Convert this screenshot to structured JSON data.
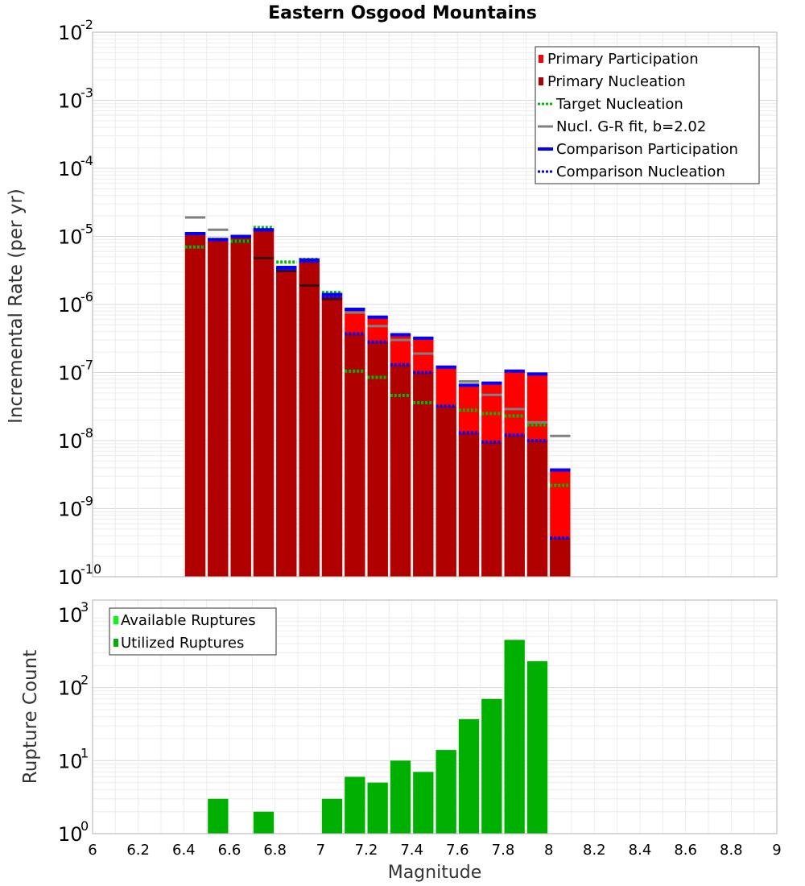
{
  "title": "Eastern Osgood Mountains",
  "chart_data": [
    {
      "type": "bar",
      "panel": "top",
      "xlabel": "",
      "ylabel": "Incremental Rate (per yr)",
      "yscale": "log",
      "xlim": [
        6,
        9
      ],
      "ylim": [
        1e-10,
        0.01
      ],
      "yticks": [
        {
          "base": "10",
          "exp": "-10",
          "value": 1e-10
        },
        {
          "base": "10",
          "exp": "-9",
          "value": 1e-09
        },
        {
          "base": "10",
          "exp": "-8",
          "value": 1e-08
        },
        {
          "base": "10",
          "exp": "-7",
          "value": 1e-07
        },
        {
          "base": "10",
          "exp": "-6",
          "value": 1e-06
        },
        {
          "base": "10",
          "exp": "-5",
          "value": 1e-05
        },
        {
          "base": "10",
          "exp": "-4",
          "value": 0.0001
        },
        {
          "base": "10",
          "exp": "-3",
          "value": 0.001
        },
        {
          "base": "10",
          "exp": "-2",
          "value": 0.01
        }
      ],
      "grid": true,
      "legend_position": "top-right",
      "legend": [
        {
          "label": "Primary Participation",
          "color": "#ff0000",
          "style": "bar"
        },
        {
          "label": "Primary Nucleation",
          "color": "#b00000",
          "style": "bar"
        },
        {
          "label": "Target Nucleation",
          "color": "#00bb00",
          "style": "dotted"
        },
        {
          "label": "Nucl. G-R fit, b=2.02",
          "color": "#808080",
          "style": "solid"
        },
        {
          "label": "Comparison Participation",
          "color": "#0000ff",
          "style": "solid-thick"
        },
        {
          "label": "Comparison Nucleation",
          "color": "#0000ff",
          "style": "dotted"
        }
      ],
      "bin_width": 0.1,
      "x": [
        6.45,
        6.55,
        6.65,
        6.75,
        6.85,
        6.95,
        7.05,
        7.15,
        7.25,
        7.35,
        7.45,
        7.55,
        7.65,
        7.75,
        7.85,
        7.95,
        8.05
      ],
      "series": [
        {
          "name": "Primary Participation",
          "color": "#ff0000",
          "values": [
            1.1e-05,
            9e-06,
            1e-05,
            1.25e-05,
            3.5e-06,
            4.5e-06,
            1.4e-06,
            8.5e-07,
            6.5e-07,
            3.6e-07,
            3.2e-07,
            1.2e-07,
            6.5e-08,
            7e-08,
            1.05e-07,
            9.5e-08,
            3.7e-09
          ]
        },
        {
          "name": "Primary Nucleation",
          "color": "#b00000",
          "values": [
            1.1e-05,
            9e-06,
            1e-05,
            1.25e-05,
            3.3e-06,
            4.3e-06,
            1.3e-06,
            3.7e-07,
            2.8e-07,
            1.3e-07,
            1e-07,
            3.2e-08,
            1.3e-08,
            9.5e-09,
            1.2e-08,
            1e-08,
            3.7e-10
          ]
        },
        {
          "name": "Target Nucleation",
          "color": "#00bb00",
          "values": [
            7e-06,
            9e-06,
            8.5e-06,
            1.35e-05,
            4.2e-06,
            4.6e-06,
            1.5e-06,
            1.05e-07,
            8.5e-08,
            4.6e-08,
            3.6e-08,
            3.2e-08,
            2.8e-08,
            2.5e-08,
            2.3e-08,
            1.7e-08,
            2.2e-09
          ]
        },
        {
          "name": "Nucl. G-R fit, b=2.02",
          "color": "#808080",
          "values": [
            1.9e-05,
            1.25e-05,
            8.5e-06,
            4.8e-06,
            3.1e-06,
            1.9e-06,
            1.2e-06,
            7.6e-07,
            4.8e-07,
            3e-07,
            1.9e-07,
            1.2e-07,
            7.4e-08,
            4.7e-08,
            2.9e-08,
            1.85e-08,
            1.17e-08
          ]
        },
        {
          "name": "Comparison Participation",
          "color": "#0000ff",
          "values": [
            1.1e-05,
            9e-06,
            1e-05,
            1.25e-05,
            3.5e-06,
            4.5e-06,
            1.4e-06,
            8.5e-07,
            6.5e-07,
            3.6e-07,
            3.2e-07,
            1.2e-07,
            6.5e-08,
            7e-08,
            1.05e-07,
            9.5e-08,
            3.7e-09
          ]
        },
        {
          "name": "Comparison Nucleation",
          "color": "#0000ff",
          "values": [
            1.1e-05,
            9e-06,
            1e-05,
            1.25e-05,
            3.3e-06,
            4.3e-06,
            1.3e-06,
            3.7e-07,
            2.8e-07,
            1.3e-07,
            1e-07,
            3.2e-08,
            1.3e-08,
            9.5e-09,
            1.2e-08,
            1e-08,
            3.7e-10
          ]
        }
      ]
    },
    {
      "type": "bar",
      "panel": "bottom",
      "xlabel": "Magnitude",
      "ylabel": "Rupture Count",
      "yscale": "log",
      "xlim": [
        6,
        9
      ],
      "ylim": [
        1,
        1000
      ],
      "xticks": [
        "6",
        "6.2",
        "6.4",
        "6.6",
        "6.8",
        "7",
        "7.2",
        "7.4",
        "7.6",
        "7.8",
        "8",
        "8.2",
        "8.4",
        "8.6",
        "8.8",
        "9"
      ],
      "yticks": [
        {
          "base": "10",
          "exp": "0",
          "value": 1
        },
        {
          "base": "10",
          "exp": "1",
          "value": 10
        },
        {
          "base": "10",
          "exp": "2",
          "value": 100
        },
        {
          "base": "10",
          "exp": "3",
          "value": 1000
        }
      ],
      "grid": true,
      "legend_position": "top-left",
      "legend": [
        {
          "label": "Available Ruptures",
          "color": "#00ff00"
        },
        {
          "label": "Utilized Ruptures",
          "color": "#00b000"
        }
      ],
      "bin_width": 0.1,
      "x": [
        6.55,
        6.75,
        6.85,
        6.95,
        7.05,
        7.15,
        7.25,
        7.35,
        7.45,
        7.55,
        7.65,
        7.75,
        7.85,
        7.95
      ],
      "series": [
        {
          "name": "Utilized Ruptures",
          "color": "#00b000",
          "values": [
            3,
            2,
            1,
            1,
            3,
            6,
            5,
            10,
            7,
            14,
            37,
            70,
            450,
            230
          ]
        }
      ]
    }
  ]
}
